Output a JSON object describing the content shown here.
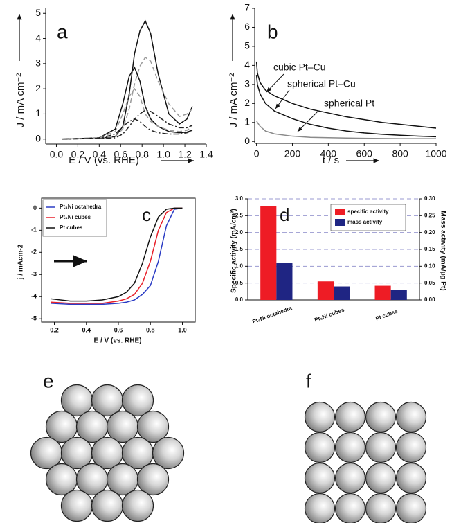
{
  "chart_data": [
    {
      "type": "line",
      "label": "a",
      "xlabel": "E / V (vs. RHE)",
      "ylabel": "J / mA cm⁻²",
      "xlim": [
        -0.1,
        1.4
      ],
      "xticks": [
        {
          "value": 0,
          "label": "0.0"
        },
        0.2,
        0.4,
        0.6,
        0.8,
        {
          "value": 1,
          "label": "1.0"
        },
        1.2,
        1.4
      ],
      "ylim": [
        -0.2,
        5.2
      ],
      "yticks": [
        0,
        1,
        2,
        3,
        4,
        5
      ],
      "x": [
        0.05,
        0.2,
        0.4,
        0.55,
        0.62,
        0.68,
        0.73,
        0.78,
        0.83,
        0.88,
        0.95,
        1.05,
        1.15,
        1.22,
        1.27
      ],
      "series": [
        {
          "color": "#111111",
          "dash": "solid",
          "values": [
            0,
            0.02,
            0.03,
            0.1,
            0.5,
            1.8,
            3.4,
            4.3,
            4.7,
            4.2,
            2.6,
            1.0,
            0.6,
            0.8,
            1.3
          ]
        },
        {
          "color": "#111111",
          "dash": "solid",
          "values": [
            0,
            0.02,
            0.05,
            0.4,
            1.4,
            2.5,
            2.85,
            2.3,
            1.3,
            0.8,
            0.5,
            0.3,
            0.25,
            0.28,
            0.35
          ]
        },
        {
          "color": "#9a9a9a",
          "dash": "dashed",
          "values": [
            0,
            0.02,
            0.05,
            0.1,
            0.4,
            1.2,
            2.2,
            2.9,
            3.25,
            3.1,
            2.3,
            1.4,
            0.9,
            1.0,
            1.2
          ]
        },
        {
          "color": "#9a9a9a",
          "dash": "dashed",
          "values": [
            0,
            0.02,
            0.05,
            0.3,
            1.0,
            1.7,
            2.0,
            1.7,
            1.0,
            0.7,
            0.5,
            0.35,
            0.3,
            0.35,
            0.5
          ]
        },
        {
          "color": "#222222",
          "dash": "dashdot",
          "values": [
            0,
            0.01,
            0.02,
            0.05,
            0.2,
            0.5,
            0.8,
            1.0,
            1.15,
            1.1,
            0.9,
            0.6,
            0.45,
            0.45,
            0.55
          ]
        },
        {
          "color": "#222222",
          "dash": "dashdot",
          "values": [
            0,
            0.01,
            0.03,
            0.2,
            0.5,
            0.7,
            0.8,
            0.7,
            0.5,
            0.35,
            0.25,
            0.2,
            0.2,
            0.25,
            0.35
          ]
        }
      ]
    },
    {
      "type": "line",
      "label": "b",
      "xlabel": "t / s",
      "ylabel": "J / mA cm⁻²",
      "xlim": [
        -10,
        1000
      ],
      "xticks": [
        0,
        200,
        400,
        600,
        800,
        1000
      ],
      "ylim": [
        -0.1,
        7
      ],
      "yticks": [
        0,
        1,
        2,
        3,
        4,
        5,
        6,
        7
      ],
      "x": [
        0,
        5,
        20,
        50,
        100,
        200,
        300,
        400,
        500,
        600,
        700,
        800,
        900,
        1000
      ],
      "series": [
        {
          "color": "#111111",
          "dash": "solid",
          "values": [
            4.2,
            3.6,
            3.1,
            2.7,
            2.4,
            2.0,
            1.7,
            1.5,
            1.3,
            1.15,
            1.0,
            0.9,
            0.8,
            0.7
          ]
        },
        {
          "color": "#111111",
          "dash": "solid",
          "values": [
            3.5,
            3.0,
            2.5,
            2.0,
            1.6,
            1.2,
            0.9,
            0.7,
            0.55,
            0.45,
            0.38,
            0.33,
            0.28,
            0.25
          ]
        },
        {
          "color": "#8a8a8a",
          "dash": "solid",
          "values": [
            1.1,
            1.0,
            0.8,
            0.55,
            0.4,
            0.28,
            0.22,
            0.2,
            0.18,
            0.17,
            0.16,
            0.15,
            0.15,
            0.15
          ]
        }
      ],
      "annotations": [
        "cubic Pt–Cu",
        "spherical Pt–Cu",
        "spherical Pt"
      ]
    },
    {
      "type": "line",
      "label": "c",
      "xlabel": "E / V (vs. RHE)",
      "ylabel": "j / mAcm-2",
      "legend": "top-left",
      "xlim": [
        0.12,
        1.08
      ],
      "xticks": [
        0.2,
        0.4,
        0.6,
        0.8,
        {
          "value": 1,
          "label": "1.0"
        }
      ],
      "ylim": [
        -5.15,
        0.45
      ],
      "yticks": [
        0,
        -1,
        -2,
        -3,
        -4,
        -5
      ],
      "x": [
        0.18,
        0.3,
        0.4,
        0.5,
        0.6,
        0.65,
        0.7,
        0.75,
        0.8,
        0.85,
        0.9,
        0.95,
        1.0
      ],
      "series": [
        {
          "name": "Pt₃Ni octahedra",
          "color": "#2b3cc4",
          "dash": "solid",
          "values": [
            -4.3,
            -4.35,
            -4.35,
            -4.35,
            -4.3,
            -4.25,
            -4.15,
            -3.9,
            -3.5,
            -2.4,
            -0.8,
            -0.05,
            0
          ]
        },
        {
          "name": "Pt₃Ni cubes",
          "color": "#e8202a",
          "dash": "solid",
          "values": [
            -4.25,
            -4.3,
            -4.3,
            -4.3,
            -4.2,
            -4.1,
            -3.9,
            -3.4,
            -2.4,
            -1.0,
            -0.2,
            0,
            0
          ]
        },
        {
          "name": "Pt cubes",
          "color": "#111111",
          "dash": "solid",
          "values": [
            -4.1,
            -4.2,
            -4.2,
            -4.15,
            -4.0,
            -3.8,
            -3.4,
            -2.5,
            -1.3,
            -0.4,
            -0.05,
            0,
            0
          ]
        }
      ]
    },
    {
      "type": "bar",
      "label": "d",
      "ylabel": "Specific activity (mA/cm²)",
      "y2label": "Mass activity (mA/µg Pt)",
      "legend": "top-right",
      "grid": true,
      "categories": [
        "Pt₃Ni octahedra",
        "Pt₃Ni cubes",
        "Pt cubes"
      ],
      "ylim": [
        0,
        3
      ],
      "yticks": [
        {
          "value": 0,
          "label": "0.0"
        },
        0.5,
        {
          "value": 1,
          "label": "1.0"
        },
        1.5,
        {
          "value": 2,
          "label": "2.0"
        },
        2.5,
        {
          "value": 3,
          "label": "3.0"
        }
      ],
      "y2lim": [
        0,
        0.3
      ],
      "y2ticks": [
        {
          "value": 0,
          "label": "0.00"
        },
        0.05,
        {
          "value": 0.1,
          "label": "0.10"
        },
        0.15,
        {
          "value": 0.2,
          "label": "0.20"
        },
        0.25,
        {
          "value": 0.3,
          "label": "0.30"
        }
      ],
      "series": [
        {
          "name": "specific activity",
          "color": "#ee1c25",
          "values": [
            2.78,
            0.55,
            0.42
          ]
        },
        {
          "name": "mass activity",
          "color": "#1f2583",
          "axis": "y2",
          "values": [
            0.11,
            0.04,
            0.03
          ]
        }
      ]
    }
  ],
  "diagrams": [
    {
      "label": "e"
    },
    {
      "label": "f"
    }
  ]
}
